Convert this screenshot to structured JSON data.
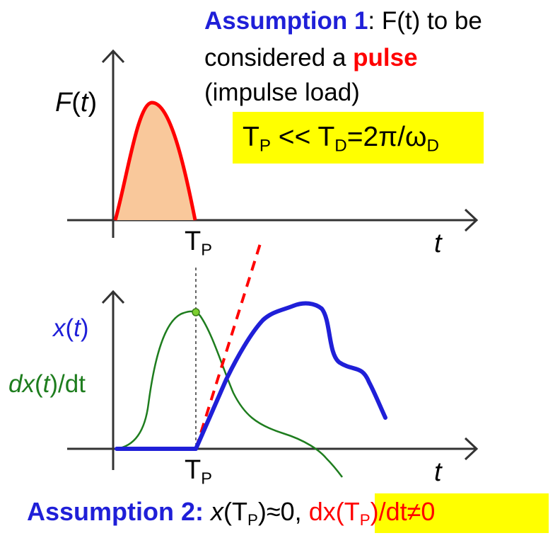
{
  "assumption1": {
    "label": "Assumption 1",
    "sep": ": ",
    "line1_rest": "F(t) to be",
    "line2_pre": "considered a ",
    "pulse_word": "pulse",
    "line3": "(impulse load)"
  },
  "formula": {
    "t1": "T",
    "s1": "P",
    "mid": " << T",
    "s2": "D",
    "eq": "=2π/ω",
    "s3": "D"
  },
  "top_plot": {
    "ylabel_f": "F",
    "ylabel_open": "(",
    "ylabel_t": "t",
    "ylabel_close": ")",
    "tick_t": "T",
    "tick_sub": "P",
    "xlabel": "t"
  },
  "bottom_plot": {
    "x_label": {
      "x": "x",
      "open": "(",
      "t": "t",
      "close": ")"
    },
    "dx_label": {
      "dx": "dx",
      "open": "(",
      "t": "t",
      "close": ")/dt"
    },
    "tick_t": "T",
    "tick_sub": "P",
    "xlabel": "t"
  },
  "assumption2": {
    "label": "Assumption 2:",
    "x": "x",
    "open": "(T",
    "sub1": "P",
    "rest": ")≈0, ",
    "dx_pre": "dx(T",
    "sub2": "P",
    "dx_post": ")/dt≠0"
  },
  "colors": {
    "blue": "#1f1fd8",
    "red": "#ff0000",
    "green": "#1e7d1e",
    "pulse_fill": "#f9c89b",
    "highlight": "#ffff00",
    "axis": "#333333"
  }
}
